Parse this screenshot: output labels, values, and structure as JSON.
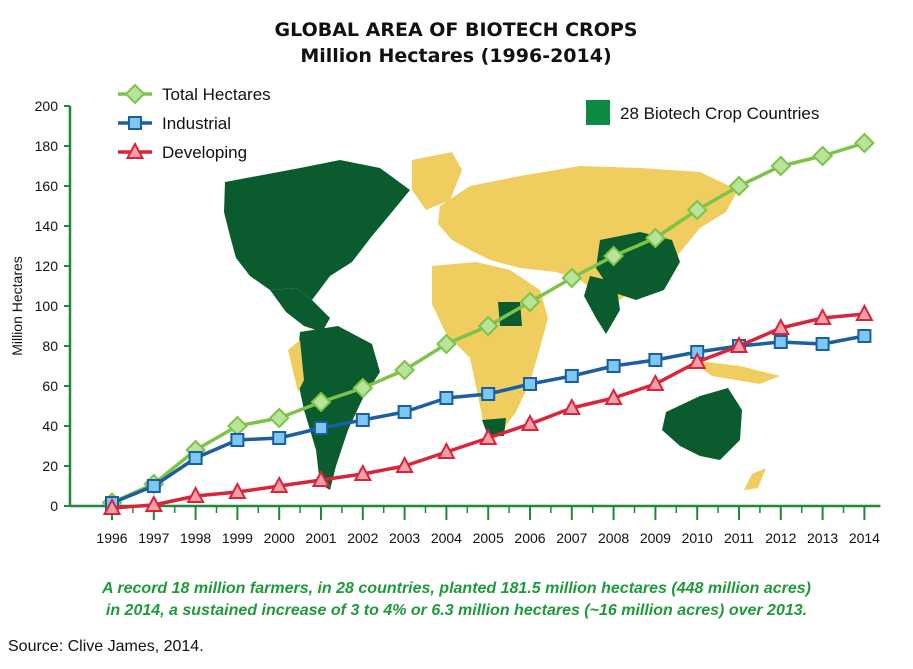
{
  "chart_data": {
    "type": "line",
    "title": "GLOBAL AREA OF BIOTECH CROPS",
    "subtitle": "Million Hectares (1996-2014)",
    "ylabel": "Million Hectares",
    "xlabel": "",
    "ylim": [
      0,
      200
    ],
    "yticks": [
      0,
      20,
      40,
      60,
      80,
      100,
      120,
      140,
      160,
      180,
      200
    ],
    "categories": [
      "1996",
      "1997",
      "1998",
      "1999",
      "2000",
      "2001",
      "2002",
      "2003",
      "2004",
      "2005",
      "2006",
      "2007",
      "2008",
      "2009",
      "2010",
      "2011",
      "2012",
      "2013",
      "2014"
    ],
    "series": [
      {
        "name": "Total Hectares",
        "color": "#7dc34a",
        "marker": "diamond",
        "values": [
          1.7,
          11,
          28,
          40,
          44,
          52,
          59,
          68,
          81,
          90,
          102,
          114,
          125,
          134,
          148,
          160,
          170,
          175,
          181.5
        ]
      },
      {
        "name": "Industrial",
        "color": "#1b5fa0",
        "marker": "square",
        "values": [
          1.5,
          10,
          24,
          33,
          34,
          39,
          43,
          47,
          54,
          56,
          61,
          65,
          70,
          73,
          77,
          80,
          82,
          81,
          85
        ]
      },
      {
        "name": "Developing",
        "color": "#d9243b",
        "marker": "triangle",
        "values": [
          -1,
          0.5,
          5,
          7,
          10,
          13,
          16,
          20,
          27,
          34,
          41,
          49,
          54,
          61,
          72,
          80,
          89,
          94,
          96
        ]
      }
    ],
    "legend_position": "top-left",
    "grid": false,
    "map_legend": {
      "label": "28 Biotech Crop Countries",
      "color": "#0a8a43"
    }
  },
  "caption": {
    "line1": "A record 18 million farmers, in 28 countries, planted 181.5 million hectares (448 million acres)",
    "line2": "in 2014, a sustained increase of 3 to 4% or 6.3 million hectares (~16 million acres) over 2013."
  },
  "source": "Source: Clive James, 2014.",
  "colors": {
    "axis": "#1b8a3a",
    "map_land": "#efcd5e",
    "map_biotech": "#0a5c2e"
  }
}
